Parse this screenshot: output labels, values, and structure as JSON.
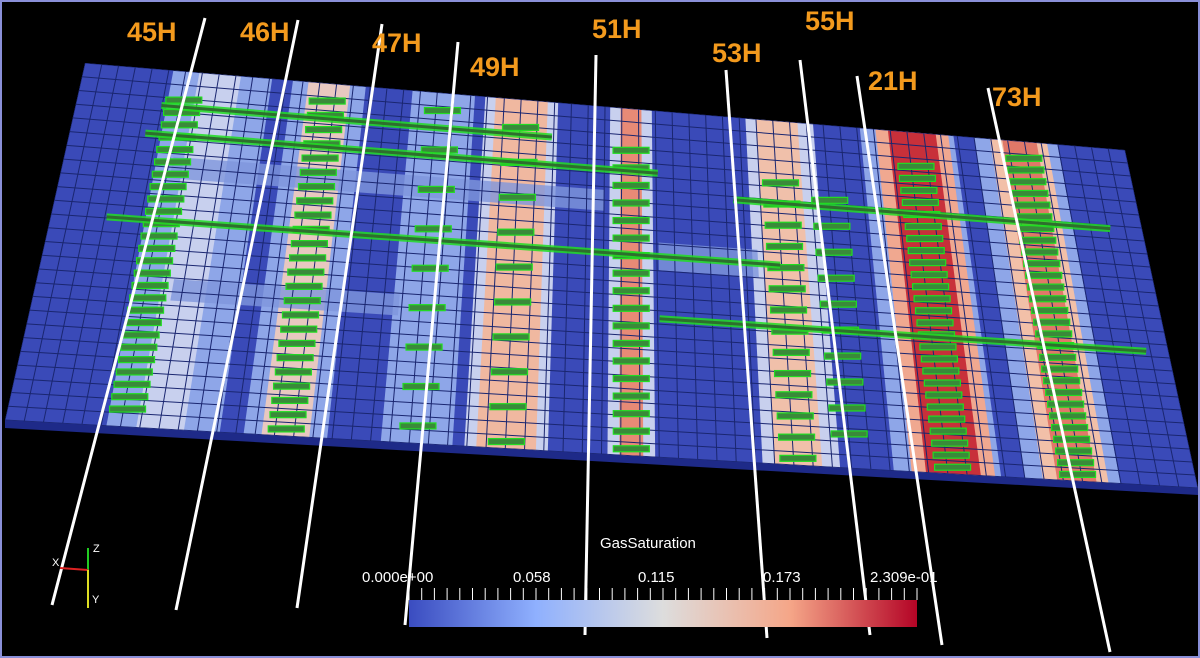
{
  "view": {
    "variable": "GasSaturation",
    "colorbar": {
      "title": "GasSaturation",
      "ticks": [
        "0.000e+00",
        "0.058",
        "0.115",
        "0.173",
        "2.309e-01"
      ],
      "colors": [
        "#3a4cc0",
        "#8fb0fe",
        "#dddddd",
        "#f5a688",
        "#b40426"
      ]
    },
    "axes": {
      "x": "X",
      "y": "Y",
      "z": "Z"
    },
    "wells": [
      "45H",
      "46H",
      "47H",
      "49H",
      "51H",
      "53H",
      "55H",
      "21H",
      "73H"
    ]
  },
  "colors": {
    "background": "#000000",
    "grid_base": "#3a4ab8",
    "grid_line": "#1a2670",
    "fracture": "#22dd22",
    "well_line": "#ffffff",
    "label": "#f39a1d"
  }
}
